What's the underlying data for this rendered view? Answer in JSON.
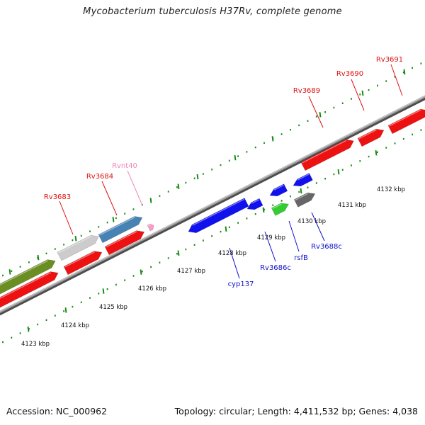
{
  "title": "Mycobacterium tuberculosis H37Rv, complete genome",
  "footer": {
    "accession": "Accession: NC_000962",
    "summary": "Topology: circular; Length: 4,411,532 bp; Genes: 4,038"
  },
  "colors": {
    "backbone": "#8a8a8a",
    "tick": "#118811",
    "forward_label": "#dd1111",
    "reverse_label": "#1111cc",
    "rna_label": "#ee88bb"
  },
  "scale": {
    "unit": "kbp",
    "positions": [
      4123,
      4124,
      4125,
      4126,
      4127,
      4128,
      4129,
      4130,
      4131,
      4132
    ],
    "labels": [
      "4123 kbp",
      "4124 kbp",
      "4125 kbp",
      "4126 kbp",
      "4127 kbp",
      "4128 kbp",
      "4129 kbp",
      "4130 kbp",
      "4131 kbp",
      "4132 kbp"
    ]
  },
  "features": {
    "forward": [
      {
        "label": "",
        "color": "#6b8e23",
        "row": 1
      },
      {
        "label": "",
        "color": "#ee1111",
        "row": 2
      },
      {
        "label": "Rv3683",
        "color": "#cccccc",
        "row": 1
      },
      {
        "label": "",
        "color": "#ee1111",
        "row": 2
      },
      {
        "label": "Rv3684",
        "color": "#4682b4",
        "row": 1
      },
      {
        "label": "",
        "color": "#ee1111",
        "row": 2
      },
      {
        "label": "Rvnt40",
        "color": "#ff99cc",
        "row": 2
      },
      {
        "label": "Rv3689",
        "color": "#ee1111",
        "row": 2
      },
      {
        "label": "Rv3690",
        "color": "#ee1111",
        "row": 2
      },
      {
        "label": "Rv3691",
        "color": "#ee1111",
        "row": 2
      }
    ],
    "reverse": [
      {
        "label": "cyp137",
        "color": "#1111ee",
        "row": 1
      },
      {
        "label": "",
        "color": "#1111ee",
        "row": 1
      },
      {
        "label": "Rv3686c",
        "color": "#1111ee",
        "row": 1
      },
      {
        "label": "",
        "color": "#1111ee",
        "row": 1
      },
      {
        "label": "rsfB",
        "color": "#33cc33",
        "row": 2
      },
      {
        "label": "",
        "color": "#666666",
        "row": 2
      },
      {
        "label": "Rv3688c",
        "color": "#666666",
        "row": 2
      }
    ]
  }
}
